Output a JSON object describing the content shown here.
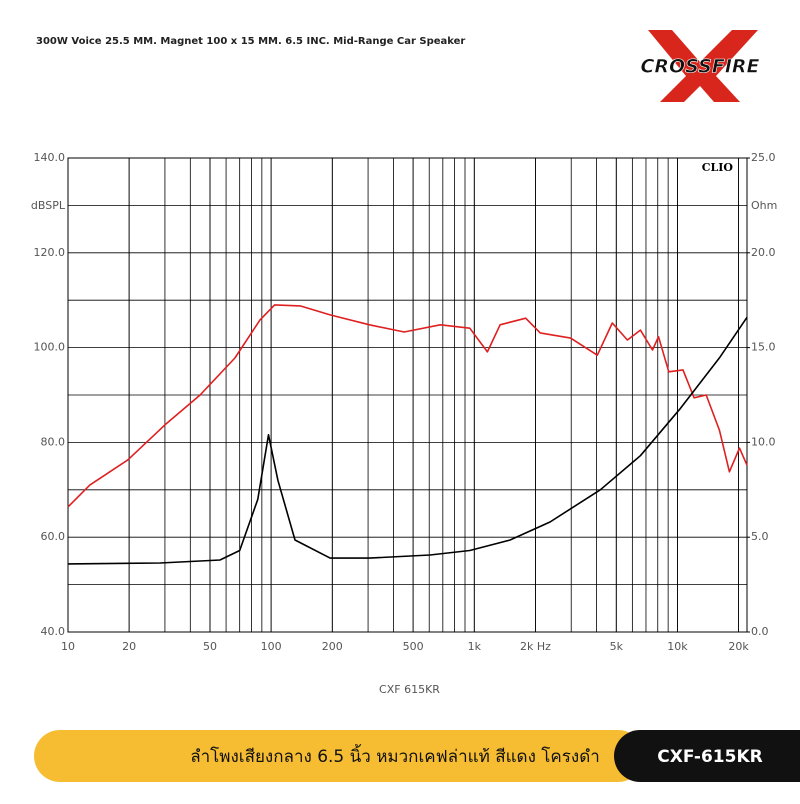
{
  "header": {
    "title": "300W Voice 25.5 MM. Magnet 100 x 15 MM. 6.5 INC. Mid-Range Car Speaker",
    "logo": "CROSSFIRE"
  },
  "chart_data": {
    "type": "line",
    "xscale": "log",
    "grid": true,
    "watermark": "CLIO",
    "ylabel": "dBSPL",
    "y2label": "Ohm",
    "xlabel": "CXF 615KR",
    "xlim": [
      10,
      22000
    ],
    "ylim": [
      40,
      140
    ],
    "y2lim": [
      0,
      25
    ],
    "xticks": [
      10,
      20,
      50,
      100,
      200,
      500,
      {
        "value": 1000,
        "label": "1k"
      },
      {
        "value": 2000,
        "label": "2k Hz"
      },
      {
        "value": 5000,
        "label": "5k"
      },
      {
        "value": 10000,
        "label": "10k"
      },
      {
        "value": 20000,
        "label": "20k"
      }
    ],
    "yticks": [
      {
        "value": 40,
        "label": "40.0"
      },
      {
        "value": 60,
        "label": "60.0"
      },
      {
        "value": 80,
        "label": "80.0"
      },
      {
        "value": 100,
        "label": "100.0"
      },
      {
        "value": 120,
        "label": "120.0"
      },
      {
        "value": 140,
        "label": "140.0"
      }
    ],
    "y2ticks": [
      {
        "value": 0,
        "label": "0.0"
      },
      {
        "value": 5,
        "label": "5.0"
      },
      {
        "value": 10,
        "label": "10.0"
      },
      {
        "value": 15,
        "label": "15.0"
      },
      {
        "value": 20,
        "label": "20.0"
      },
      {
        "value": 25,
        "label": "25.0"
      }
    ],
    "series": [
      {
        "color": "#e02020",
        "axis": "y",
        "x": [
          10,
          12.8,
          19.7,
          30,
          44.7,
          66.3,
          88,
          104,
          139,
          195,
          305,
          452,
          680,
          950,
          1160,
          1340,
          1790,
          2110,
          2980,
          4030,
          4780,
          5670,
          6570,
          7540,
          8070,
          9070,
          10650,
          12080,
          13860,
          16090,
          18020,
          20210,
          22000
        ],
        "values": [
          66.4,
          71.0,
          76.3,
          83.7,
          90.0,
          97.8,
          105.8,
          109.0,
          108.8,
          106.9,
          104.8,
          103.3,
          104.8,
          104.1,
          99.1,
          104.8,
          106.2,
          103.1,
          102.0,
          98.4,
          105.2,
          101.6,
          103.7,
          99.5,
          102.3,
          94.9,
          95.3,
          89.4,
          90.0,
          82.6,
          73.8,
          78.8,
          75.2
        ]
      },
      {
        "color": "#000000",
        "axis": "y2",
        "x": [
          10,
          28.4,
          56,
          70,
          86,
          97,
          108,
          131,
          195,
          305,
          605,
          950,
          1500,
          2360,
          4170,
          6570,
          10350,
          16200,
          22000
        ],
        "values": [
          3.59,
          3.64,
          3.8,
          4.3,
          7.0,
          10.4,
          8.0,
          4.85,
          3.9,
          3.9,
          4.06,
          4.3,
          4.85,
          5.8,
          7.5,
          9.3,
          11.8,
          14.5,
          16.6
        ]
      }
    ]
  },
  "banner": {
    "text": "ลำโพงเสียงกลาง 6.5 นิ้ว หมวกเคฟล่าแท้ สีแดง โครงดำ",
    "model": "CXF-615KR"
  }
}
